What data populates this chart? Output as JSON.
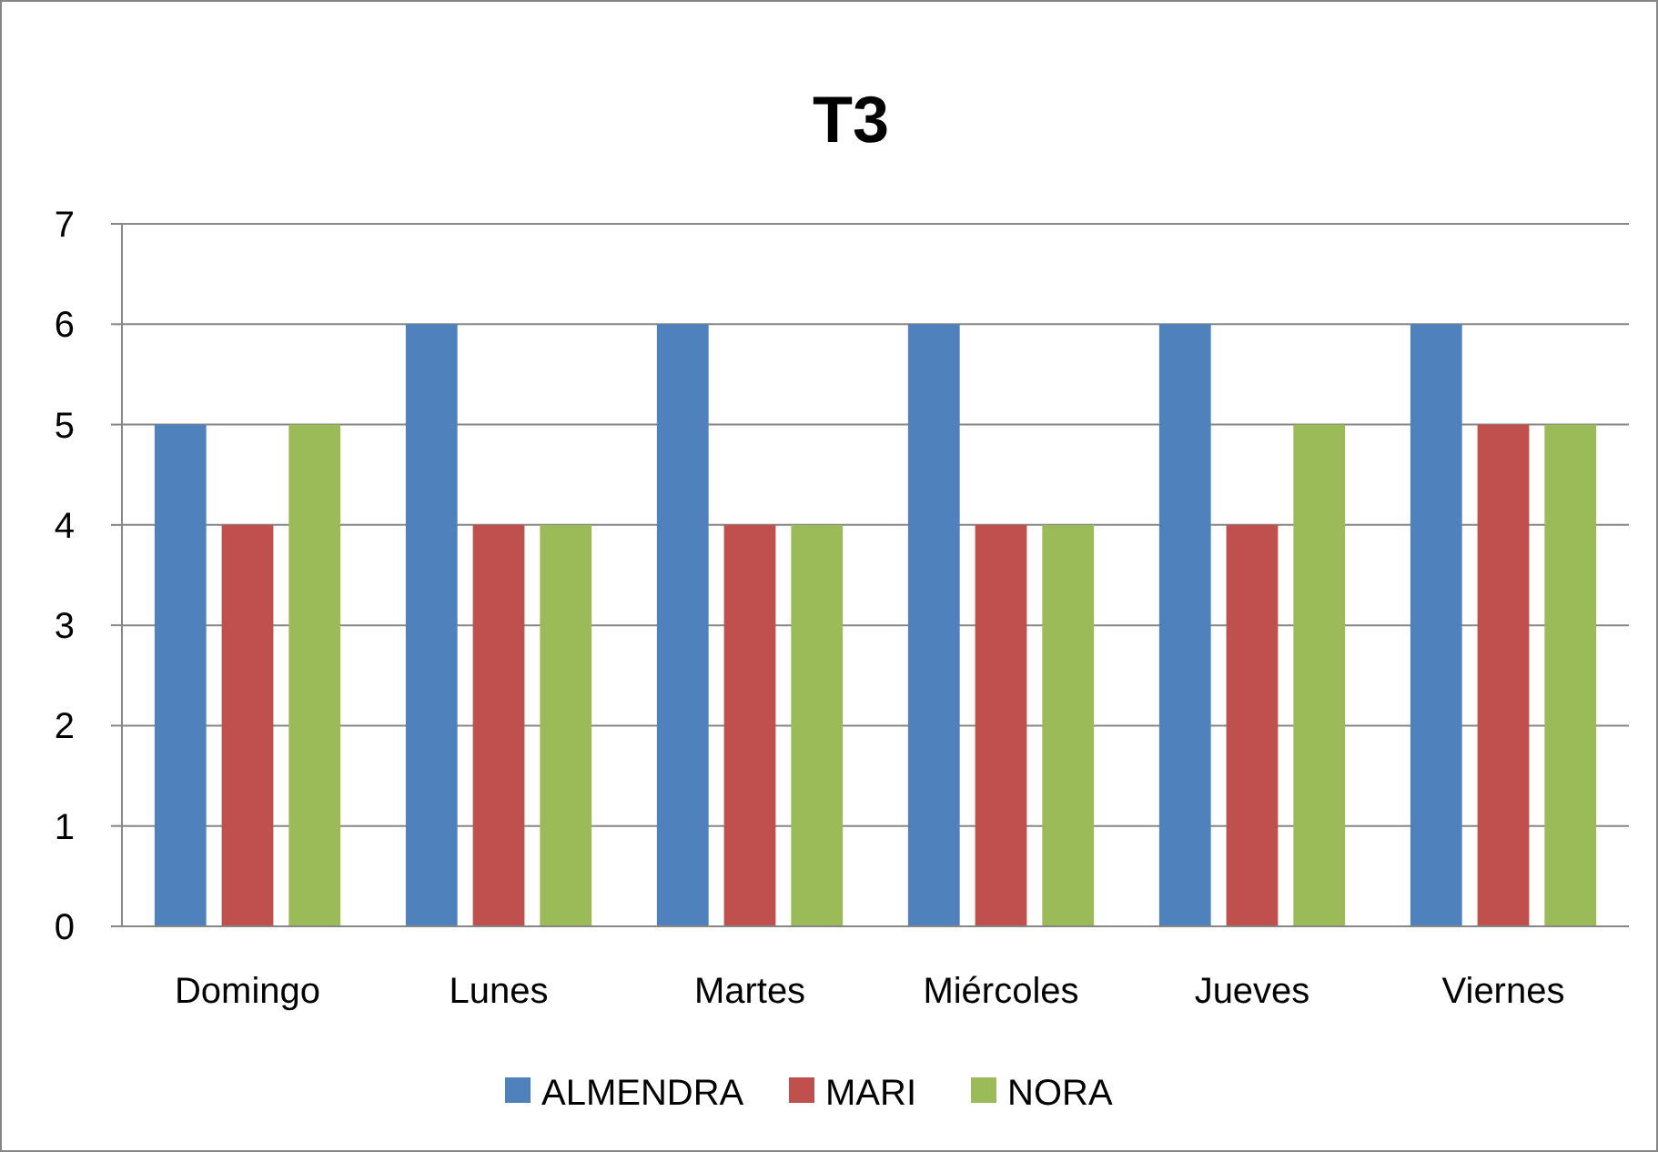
{
  "chart_data": {
    "type": "bar",
    "title": "T3",
    "categories": [
      "Domingo",
      "Lunes",
      "Martes",
      "Miércoles",
      "Jueves",
      "Viernes"
    ],
    "series": [
      {
        "name": "ALMENDRA",
        "color": "#4f81bd",
        "values": [
          5,
          6,
          6,
          6,
          6,
          6
        ]
      },
      {
        "name": "MARI",
        "color": "#c0504d",
        "values": [
          4,
          4,
          4,
          4,
          4,
          5
        ]
      },
      {
        "name": "NORA",
        "color": "#9bbb59",
        "values": [
          5,
          4,
          4,
          4,
          5,
          5
        ]
      }
    ],
    "ylim": [
      0,
      7
    ],
    "yticks": [
      0,
      1,
      2,
      3,
      4,
      5,
      6,
      7
    ],
    "grid": "y",
    "legend": "bottom"
  }
}
